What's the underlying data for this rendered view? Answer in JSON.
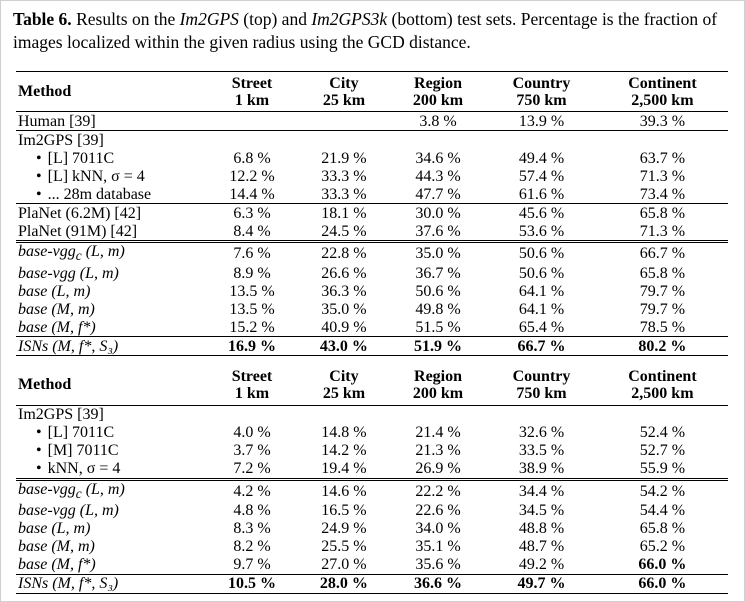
{
  "caption": {
    "label": "Table 6.",
    "parts": [
      "Results on the ",
      "Im2GPS",
      " (top) and ",
      "Im2GPS3k",
      " (bottom) test sets. Percentage is the fraction of images localized within the given radius using the GCD distance."
    ]
  },
  "tables": [
    {
      "method_header": "Method",
      "columns": [
        {
          "name": "Street",
          "unit": "1 km"
        },
        {
          "name": "City",
          "unit": "25 km"
        },
        {
          "name": "Region",
          "unit": "200 km"
        },
        {
          "name": "Country",
          "unit": "750 km"
        },
        {
          "name": "Continent",
          "unit": "2,500 km"
        }
      ],
      "groups": [
        {
          "rule": "none",
          "rows": [
            {
              "method": "Human [39]",
              "values": [
                null,
                null,
                "3.8 %",
                "13.9 %",
                "39.3 %"
              ]
            }
          ]
        },
        {
          "rule": "single",
          "rows": [
            {
              "method": "Im2GPS [39]"
            },
            {
              "method": "[L] 7011C",
              "bullet": true,
              "values": [
                "6.8 %",
                "21.9 %",
                "34.6 %",
                "49.4 %",
                "63.7 %"
              ]
            },
            {
              "method": "[L] kNN, σ = 4",
              "bullet": true,
              "values": [
                "12.2 %",
                "33.3 %",
                "44.3 %",
                "57.4 %",
                "71.3 %"
              ]
            },
            {
              "method": "... 28m database",
              "bullet": true,
              "values": [
                "14.4 %",
                "33.3 %",
                "47.7 %",
                "61.6 %",
                "73.4 %"
              ]
            }
          ]
        },
        {
          "rule": "single",
          "rows": [
            {
              "method": "PlaNet (6.2M) [42]",
              "values": [
                "6.3 %",
                "18.1 %",
                "30.0 %",
                "45.6 %",
                "65.8 %"
              ]
            },
            {
              "method": "PlaNet (91M) [42]",
              "values": [
                "8.4 %",
                "24.5 %",
                "37.6 %",
                "53.6 %",
                "71.3 %"
              ]
            }
          ]
        },
        {
          "rule": "double",
          "rows": [
            {
              "method": "base-vgg",
              "method_sub": "c",
              "method_rest": " (L, m)",
              "italic": true,
              "values": [
                "7.6 %",
                "22.8 %",
                "35.0 %",
                "50.6 %",
                "66.7 %"
              ]
            },
            {
              "method": "base-vgg (L, m)",
              "italic": true,
              "values": [
                "8.9 %",
                "26.6 %",
                "36.7 %",
                "50.6 %",
                "65.8 %"
              ]
            },
            {
              "method": "base (L, m)",
              "italic": true,
              "values": [
                "13.5 %",
                "36.3 %",
                "50.6 %",
                "64.1 %",
                "79.7 %"
              ]
            },
            {
              "method": "base (M, m)",
              "italic": true,
              "values": [
                "13.5 %",
                "35.0 %",
                "49.8 %",
                "64.1 %",
                "79.7 %"
              ]
            },
            {
              "method": "base (M, f*)",
              "italic": true,
              "values": [
                "15.2 %",
                "40.9 %",
                "51.5 %",
                "65.4 %",
                "78.5 %"
              ]
            }
          ]
        },
        {
          "rule": "single",
          "rows": [
            {
              "method": "ISNs (M, f*, S₃)",
              "italic": true,
              "bold": [
                0,
                1,
                2,
                3,
                4
              ],
              "values": [
                "16.9 %",
                "43.0 %",
                "51.9 %",
                "66.7 %",
                "80.2 %"
              ]
            }
          ]
        }
      ]
    },
    {
      "method_header": "Method",
      "columns": [
        {
          "name": "Street",
          "unit": "1 km"
        },
        {
          "name": "City",
          "unit": "25 km"
        },
        {
          "name": "Region",
          "unit": "200 km"
        },
        {
          "name": "Country",
          "unit": "750 km"
        },
        {
          "name": "Continent",
          "unit": "2,500 km"
        }
      ],
      "groups": [
        {
          "rule": "none",
          "rows": [
            {
              "method": "Im2GPS [39]"
            },
            {
              "method": "[L] 7011C",
              "bullet": true,
              "values": [
                "4.0 %",
                "14.8 %",
                "21.4 %",
                "32.6 %",
                "52.4 %"
              ]
            },
            {
              "method": "[M] 7011C",
              "bullet": true,
              "values": [
                "3.7 %",
                "14.2 %",
                "21.3 %",
                "33.5 %",
                "52.7 %"
              ]
            },
            {
              "method": "kNN, σ = 4",
              "bullet": true,
              "values": [
                "7.2 %",
                "19.4 %",
                "26.9 %",
                "38.9 %",
                "55.9 %"
              ]
            }
          ]
        },
        {
          "rule": "double",
          "rows": [
            {
              "method": "base-vgg",
              "method_sub": "c",
              "method_rest": " (L, m)",
              "italic": true,
              "values": [
                "4.2 %",
                "14.6 %",
                "22.2 %",
                "34.4 %",
                "54.2 %"
              ]
            },
            {
              "method": "base-vgg (L, m)",
              "italic": true,
              "values": [
                "4.8 %",
                "16.5 %",
                "22.6 %",
                "34.5 %",
                "54.4 %"
              ]
            },
            {
              "method": "base (L, m)",
              "italic": true,
              "values": [
                "8.3 %",
                "24.9 %",
                "34.0 %",
                "48.8 %",
                "65.8 %"
              ]
            },
            {
              "method": "base (M, m)",
              "italic": true,
              "values": [
                "8.2 %",
                "25.5 %",
                "35.1 %",
                "48.7 %",
                "65.2 %"
              ]
            },
            {
              "method": "base (M, f*)",
              "italic": true,
              "bold": [
                4
              ],
              "values": [
                "9.7 %",
                "27.0 %",
                "35.6 %",
                "49.2 %",
                "66.0 %"
              ]
            }
          ]
        },
        {
          "rule": "single",
          "rows": [
            {
              "method": "ISNs (M, f*, S₃)",
              "italic": true,
              "bold": [
                0,
                1,
                2,
                3,
                4
              ],
              "values": [
                "10.5 %",
                "28.0 %",
                "36.6 %",
                "49.7 %",
                "66.0 %"
              ]
            }
          ]
        }
      ]
    }
  ]
}
